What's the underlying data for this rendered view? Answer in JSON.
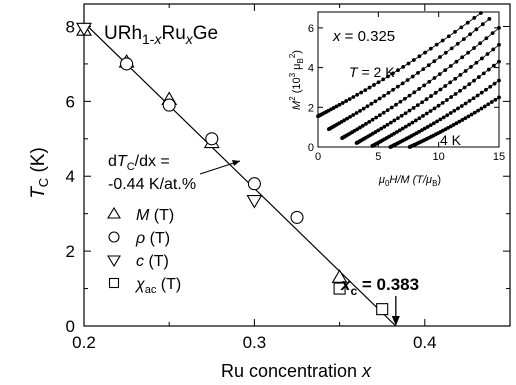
{
  "chart_data": [
    {
      "type": "scatter",
      "compound": {
        "base": "URh",
        "sub1": "1-",
        "x1": "x",
        "mid": "Ru",
        "x2": "x",
        "tail": "Ge"
      },
      "xlabel": "Ru concentration x",
      "ylabel_main": "T",
      "ylabel_sub": "C",
      "ylabel_unit": " (K)",
      "xlim": [
        0.2,
        0.45
      ],
      "ylim": [
        0,
        8.6
      ],
      "xticks": [
        0.2,
        0.3,
        0.4
      ],
      "xtick_labels": [
        "0.2",
        "0.3",
        "0.4"
      ],
      "yticks": [
        0,
        2,
        4,
        6,
        8
      ],
      "ytick_labels": [
        "0",
        "2",
        "4",
        "6",
        "8"
      ],
      "grid": false,
      "legend_position": "bottom-left",
      "series": [
        {
          "name": "M (T)",
          "label_main": "M",
          "label_sub": "",
          "label_arg": " (T)",
          "marker": "triangle-up",
          "points": [
            [
              0.2,
              7.9
            ],
            [
              0.225,
              7.05
            ],
            [
              0.25,
              6.05
            ],
            [
              0.275,
              4.9
            ],
            [
              0.35,
              1.3
            ]
          ]
        },
        {
          "name": "ρ (T)",
          "label_main": "ρ",
          "label_sub": "",
          "label_arg": " (T)",
          "marker": "circle",
          "points": [
            [
              0.225,
              7.0
            ],
            [
              0.25,
              5.9
            ],
            [
              0.275,
              5.0
            ],
            [
              0.3,
              3.8
            ],
            [
              0.325,
              2.9
            ]
          ]
        },
        {
          "name": "c (T)",
          "label_main": "c",
          "label_sub": "",
          "label_arg": " (T)",
          "marker": "triangle-down",
          "points": [
            [
              0.2,
              7.95
            ],
            [
              0.3,
              3.35
            ]
          ]
        },
        {
          "name": "χac (T)",
          "label_main": "χ",
          "label_sub": "ac",
          "label_arg": " (T)",
          "marker": "square",
          "points": [
            [
              0.35,
              1.0
            ],
            [
              0.375,
              0.45
            ]
          ]
        }
      ],
      "fit_line": {
        "x": [
          0.2,
          0.383
        ],
        "y": [
          8.1,
          0.0
        ]
      },
      "annotations": {
        "slope_line1_pre": "d",
        "slope_line1_t": "T",
        "slope_line1_sub": "C",
        "slope_line1_post": "/dx =",
        "slope_line2": "-0.44 K/at.%",
        "xc_main": "x",
        "xc_sub": "c",
        "xc_value": " = 0.383",
        "xc_at": 0.383
      }
    },
    {
      "type": "scatter",
      "title": "x = 0.325",
      "title_prefix": "x",
      "title_value": " = 0.325",
      "xlabel_main": "μ",
      "xlabel_sub": "0",
      "xlabel_rest": "H/M (T/μ",
      "xlabel_sub2": "B",
      "xlabel_end": ")",
      "ylabel_main": "M",
      "ylabel_sup": "2",
      "ylabel_rest": " (10",
      "ylabel_sup2": "3",
      "ylabel_mu": " μ",
      "ylabel_sub": "B",
      "ylabel_sup3": "2",
      "ylabel_end": ")",
      "xlim": [
        0,
        15
      ],
      "ylim": [
        0,
        6.8
      ],
      "xticks": [
        0,
        5,
        10,
        15
      ],
      "xtick_labels": [
        "0",
        "5",
        "10",
        "15"
      ],
      "yticks": [
        0,
        2,
        4,
        6
      ],
      "ytick_labels": [
        "0",
        "2",
        "4",
        "6"
      ],
      "annotation_top": "T = 2 K",
      "annotation_top_t": "T",
      "annotation_top_value": " = 2 K",
      "annotation_bottom": "4 K",
      "isotherms": [
        {
          "x0": 0.0,
          "y0": 1.55,
          "x1": 13.5,
          "y1": 6.75
        },
        {
          "x0": 0.9,
          "y0": 0.9,
          "x1": 14.2,
          "y1": 6.45
        },
        {
          "x0": 2.0,
          "y0": 0.45,
          "x1": 15.0,
          "y1": 6.0
        },
        {
          "x0": 3.2,
          "y0": 0.2,
          "x1": 15.0,
          "y1": 5.15
        },
        {
          "x0": 4.5,
          "y0": 0.05,
          "x1": 15.0,
          "y1": 4.3
        },
        {
          "x0": 6.0,
          "y0": 0.0,
          "x1": 15.0,
          "y1": 3.35
        },
        {
          "x0": 7.6,
          "y0": 0.0,
          "x1": 15.0,
          "y1": 2.5
        }
      ]
    }
  ]
}
